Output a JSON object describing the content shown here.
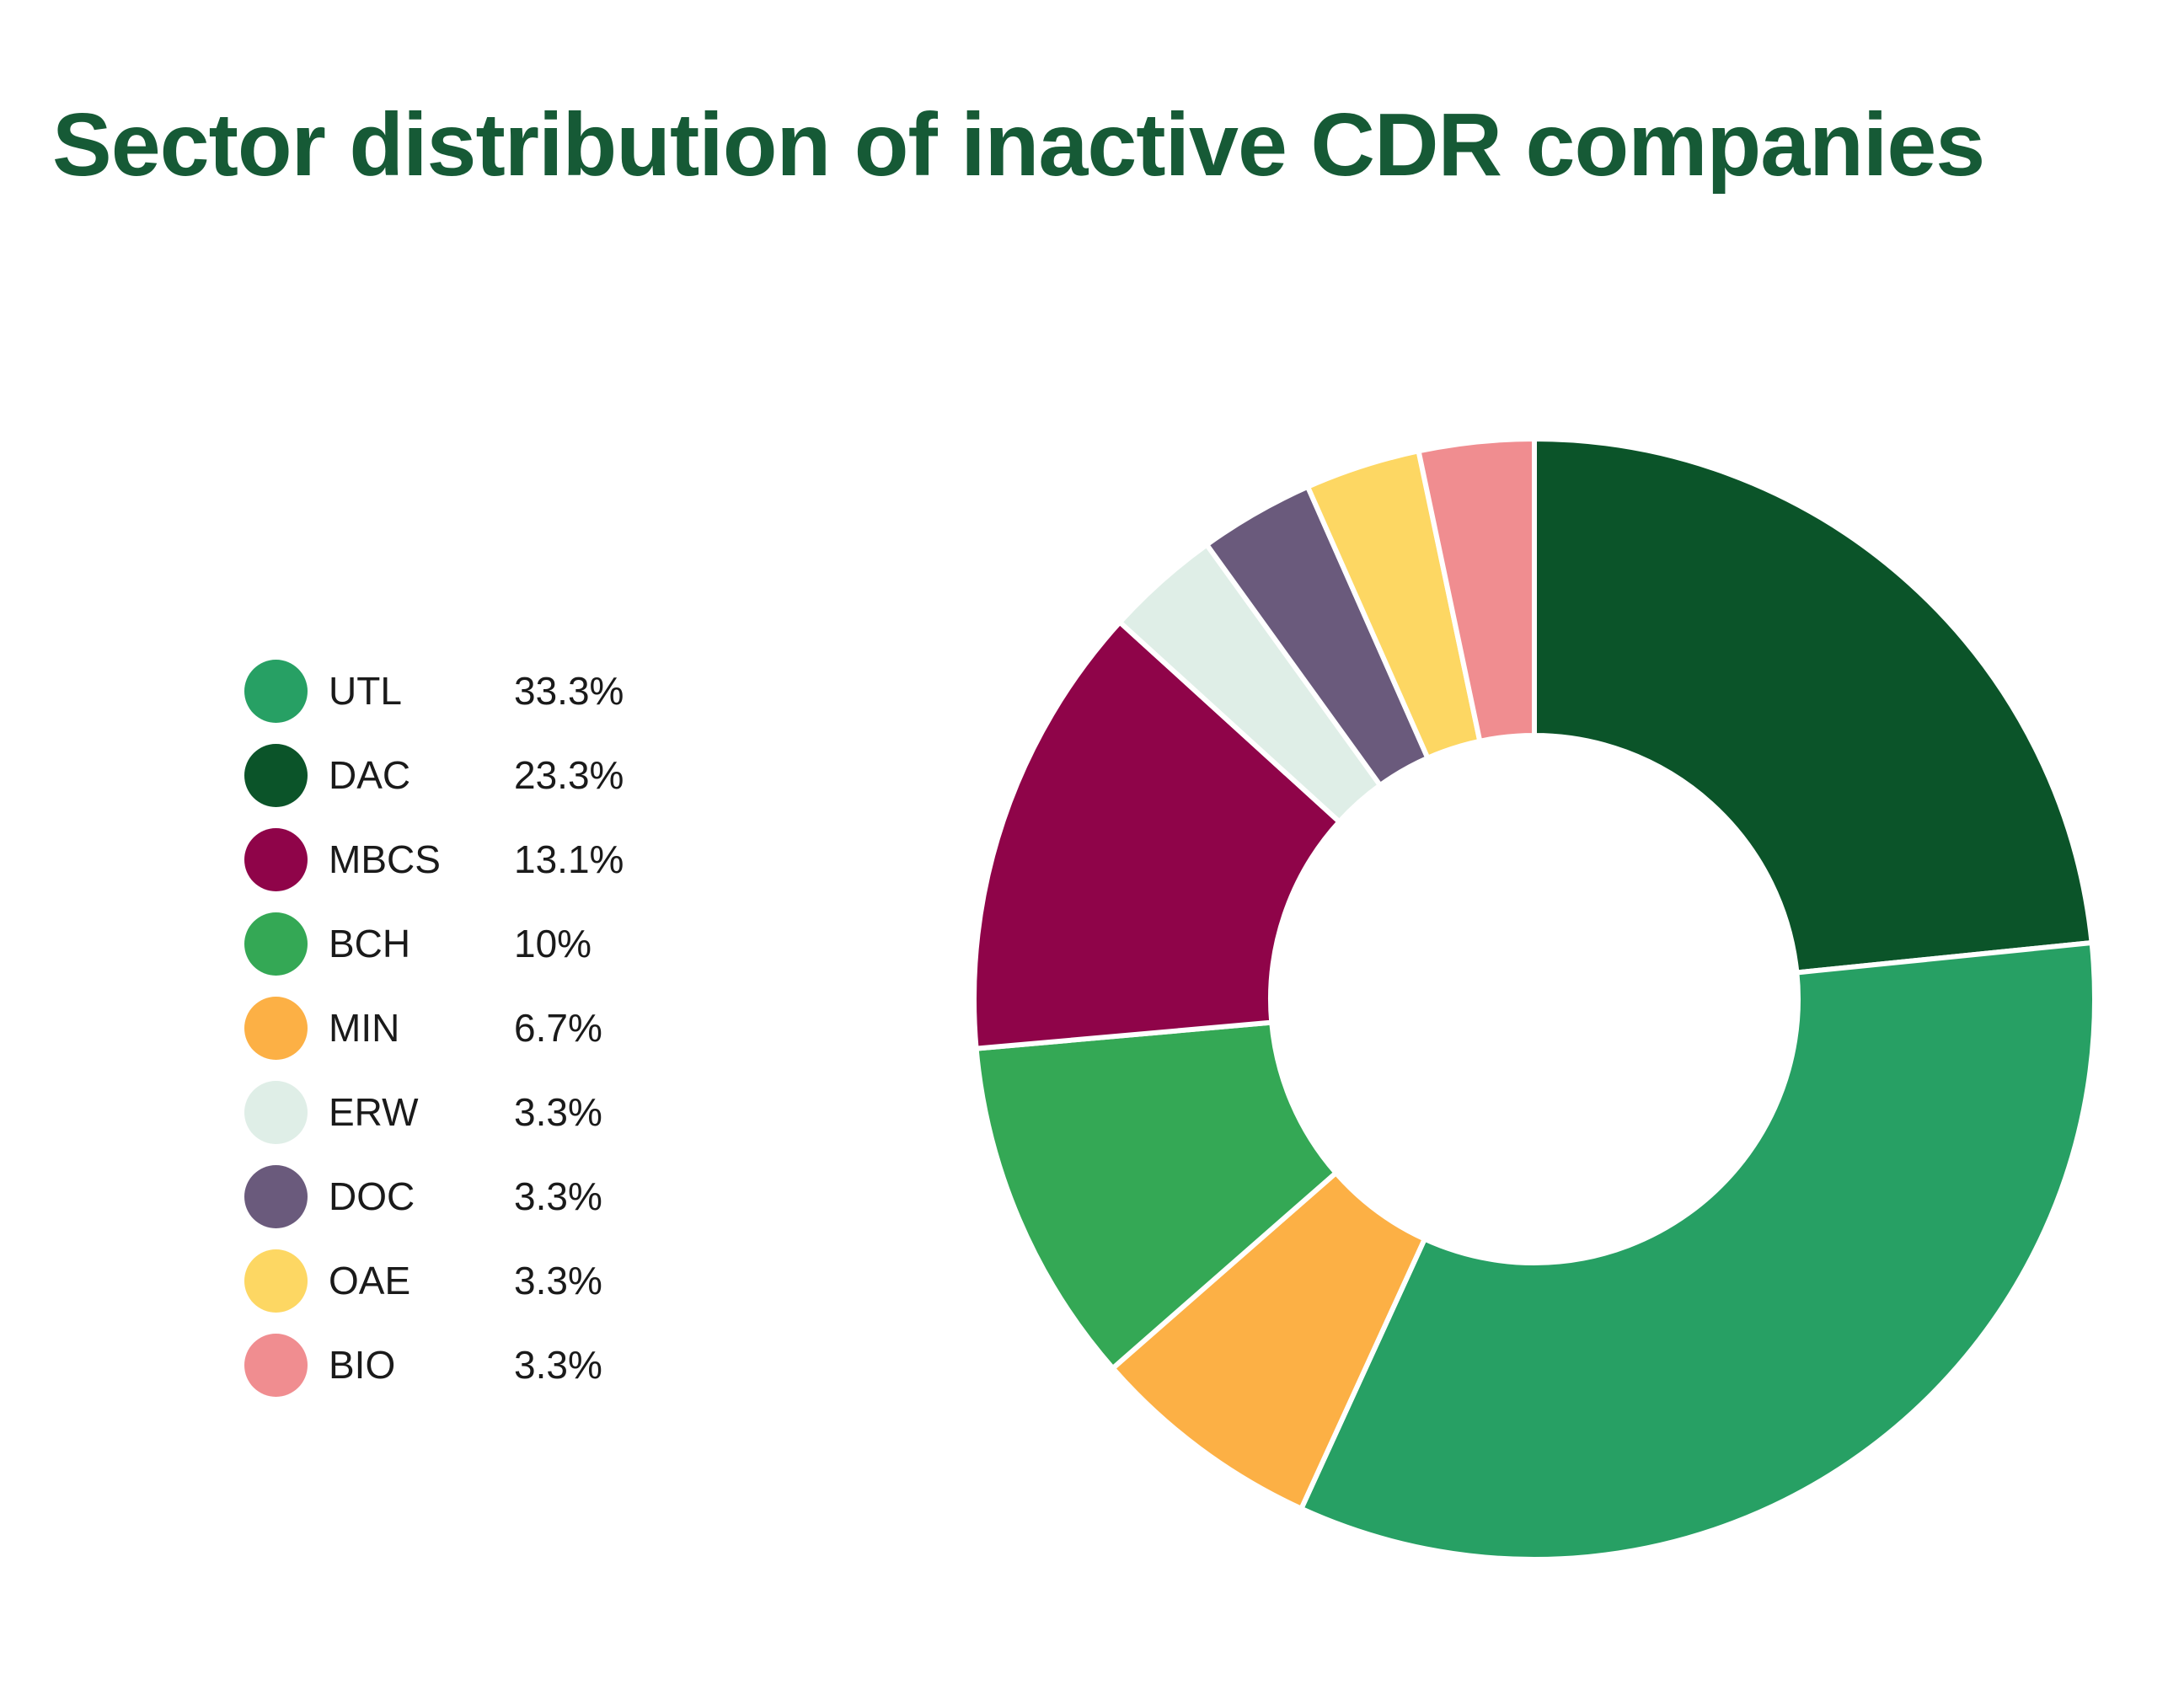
{
  "chart_data": {
    "type": "pie",
    "subtype": "donut",
    "title": "Sector distribution of inactive CDR companies",
    "labels": [
      "UTL",
      "DAC",
      "MBCS",
      "BCH",
      "MIN",
      "ERW",
      "DOC",
      "OAE",
      "BIO"
    ],
    "values": [
      33.3,
      23.3,
      13.1,
      10,
      6.7,
      3.3,
      3.3,
      3.3,
      3.3
    ],
    "percent_labels": [
      "33.3%",
      "23.3%",
      "13.1%",
      "10%",
      "6.7%",
      "3.3%",
      "3.3%",
      "3.3%",
      "3.3%"
    ],
    "colors": [
      "#27a064",
      "#0b5429",
      "#8f0449",
      "#34a855",
      "#fcb045",
      "#dfeee7",
      "#6a5a7c",
      "#fdd763",
      "#f08d90"
    ],
    "slice_order_clockwise_from_top": [
      "DAC",
      "UTL",
      "MIN",
      "BCH",
      "MBCS",
      "ERW",
      "DOC",
      "OAE",
      "BIO"
    ],
    "inner_radius_ratio": 0.47,
    "slice_gap_color": "#ffffff",
    "legend_position": "left",
    "title_color": "#165a36",
    "background": "#ffffff"
  }
}
